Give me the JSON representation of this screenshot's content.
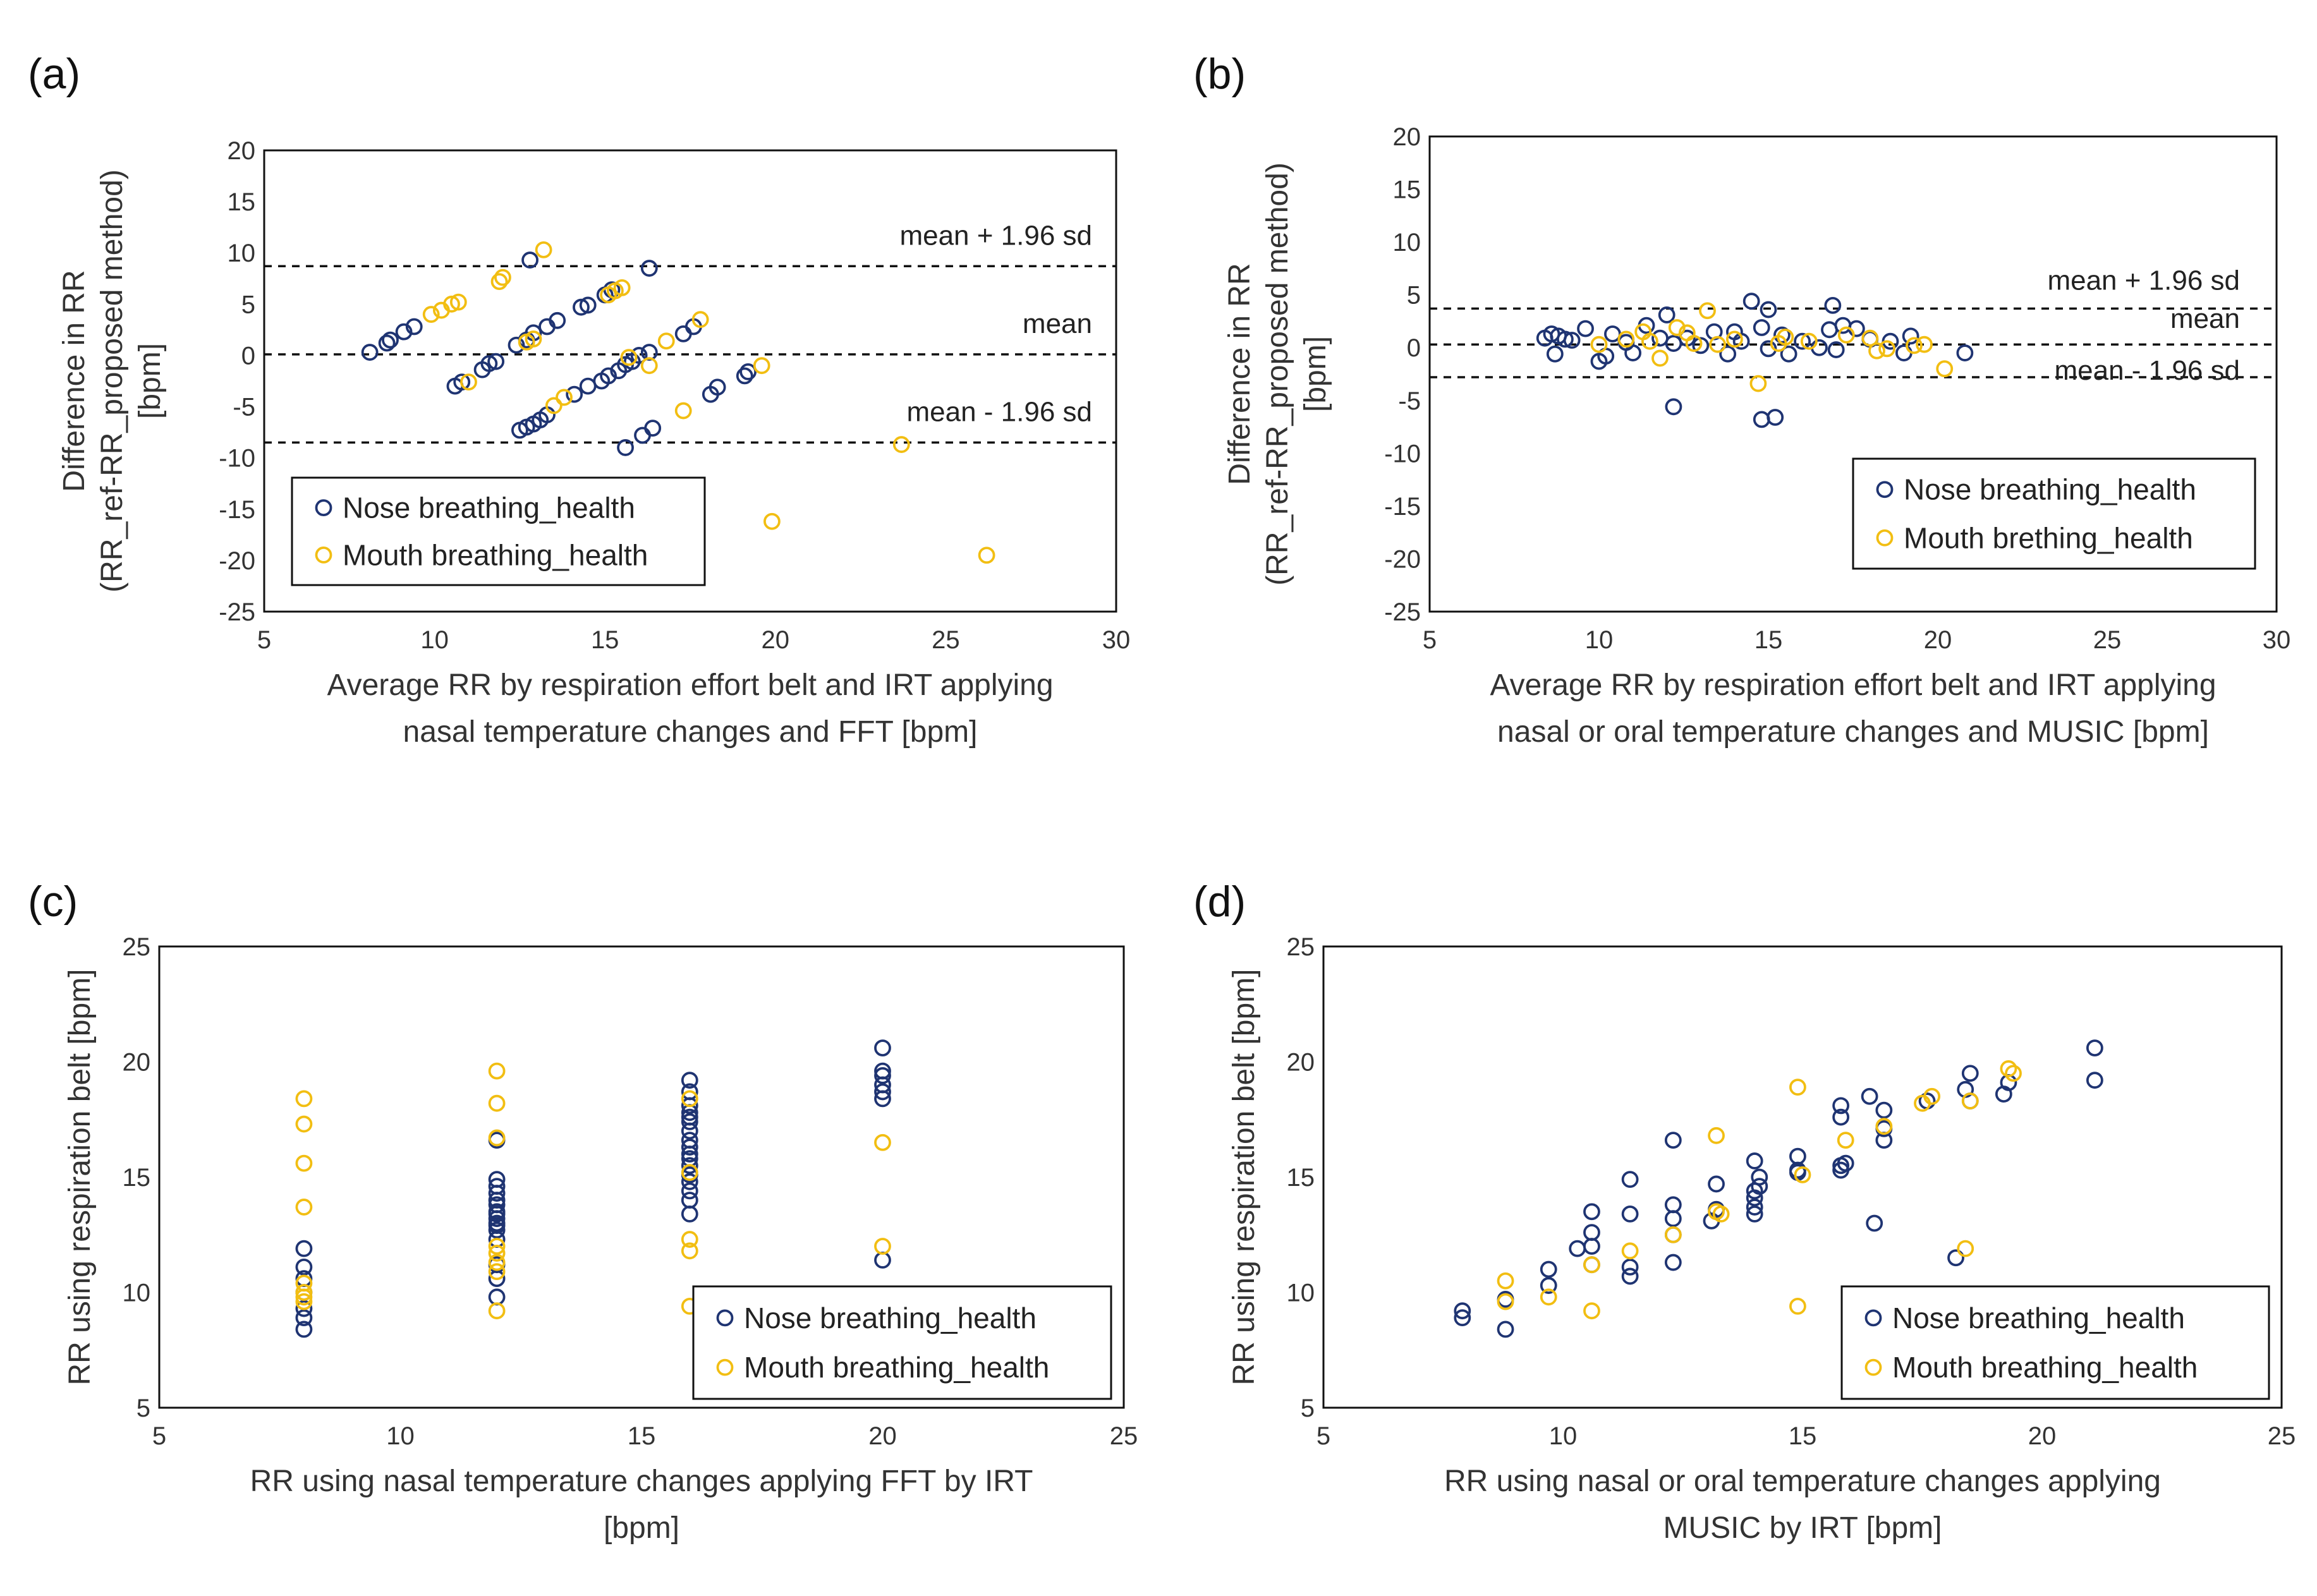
{
  "colors": {
    "nose": "#1f3472",
    "mouth": "#f2be12",
    "line": "#111111"
  },
  "chart_data": [
    {
      "id": "a",
      "panel_label": "(a)",
      "type": "scatter",
      "xlabel_lines": [
        "Average RR by respiration effort belt and IRT applying",
        "nasal temperature changes and FFT [bpm]"
      ],
      "ylabel_lines": [
        "Difference in RR",
        "(RR_ref-RR_proposed method)",
        "[bpm]"
      ],
      "xlim": [
        5,
        30
      ],
      "ylim": [
        -25,
        20
      ],
      "xticks": [
        5,
        10,
        15,
        20,
        25,
        30
      ],
      "yticks": [
        -25,
        -20,
        -15,
        -10,
        -5,
        0,
        5,
        10,
        15,
        20
      ],
      "hlines": [
        {
          "y": 8.7,
          "label": "mean + 1.96 sd"
        },
        {
          "y": 0.1,
          "label": "mean"
        },
        {
          "y": -8.5,
          "label": "mean - 1.96 sd"
        }
      ],
      "legend": {
        "position": "bottom-left",
        "entries": [
          "Nose breathing_health",
          "Mouth breathing_health"
        ]
      },
      "series": [
        {
          "name": "Nose breathing_health",
          "color_key": "nose",
          "x": [
            8.1,
            8.6,
            8.7,
            9.1,
            9.4,
            10.6,
            10.8,
            11.4,
            11.6,
            11.8,
            12.4,
            12.7,
            12.9,
            13.3,
            13.6,
            14.3,
            14.5,
            15.0,
            15.2,
            15.8,
            16.0,
            16.3,
            12.5,
            12.7,
            12.9,
            13.1,
            13.3,
            14.1,
            14.5,
            14.9,
            15.1,
            15.4,
            15.6,
            15.6,
            16.1,
            16.4,
            17.3,
            17.6,
            18.1,
            18.3,
            19.1,
            19.2,
            12.8,
            16.3
          ],
          "y": [
            0.3,
            1.2,
            1.5,
            2.3,
            2.8,
            -3.0,
            -2.6,
            -1.4,
            -0.8,
            -0.6,
            1.0,
            1.5,
            2.2,
            2.8,
            3.4,
            4.7,
            4.9,
            5.9,
            6.4,
            -0.6,
            0.0,
            0.3,
            -7.3,
            -7.0,
            -6.7,
            -6.3,
            -5.8,
            -3.8,
            -3.0,
            -2.5,
            -2.0,
            -1.5,
            -0.9,
            -9.0,
            -7.8,
            -7.1,
            2.1,
            2.8,
            -3.8,
            -3.1,
            -2.0,
            -1.6,
            9.3,
            8.5
          ]
        },
        {
          "name": "Mouth breathing_health",
          "color_key": "mouth",
          "x": [
            9.9,
            10.2,
            10.5,
            10.7,
            11.9,
            12.0,
            12.7,
            12.9,
            13.2,
            13.5,
            13.8,
            15.1,
            15.3,
            15.5,
            16.3,
            16.8,
            17.3,
            17.8,
            19.6,
            19.9,
            23.7,
            26.2,
            11.0,
            15.7
          ],
          "y": [
            4.0,
            4.4,
            5.0,
            5.2,
            7.2,
            7.6,
            1.3,
            1.6,
            10.3,
            -4.9,
            -4.1,
            5.9,
            6.3,
            6.6,
            -1.0,
            1.4,
            -5.4,
            3.5,
            -1.0,
            -16.2,
            -8.7,
            -19.5,
            -2.6,
            -0.2
          ]
        }
      ]
    },
    {
      "id": "b",
      "panel_label": "(b)",
      "type": "scatter",
      "xlabel_lines": [
        "Average RR by respiration effort belt and IRT applying",
        "nasal or oral temperature changes and MUSIC [bpm]"
      ],
      "ylabel_lines": [
        "Difference in RR",
        "(RR_ref-RR_proposed method)",
        "[bpm]"
      ],
      "xlim": [
        5,
        30
      ],
      "ylim": [
        -25,
        20
      ],
      "xticks": [
        5,
        10,
        15,
        20,
        25,
        30
      ],
      "yticks": [
        -25,
        -20,
        -15,
        -10,
        -5,
        0,
        5,
        10,
        15,
        20
      ],
      "hlines": [
        {
          "y": 3.7,
          "label": "mean + 1.96 sd"
        },
        {
          "y": 0.3,
          "label": "mean"
        },
        {
          "y": -2.8,
          "label": "mean - 1.96 sd"
        }
      ],
      "legend": {
        "position": "bottom-right",
        "entries": [
          "Nose breathing_health",
          "Mouth brething_health"
        ]
      },
      "series": [
        {
          "name": "Nose breathing_health",
          "color_key": "nose",
          "x": [
            8.4,
            8.6,
            8.8,
            8.7,
            9.0,
            9.2,
            9.6,
            10.0,
            10.2,
            10.4,
            10.8,
            11.0,
            11.4,
            11.8,
            12.0,
            12.2,
            12.6,
            13.0,
            13.4,
            13.8,
            14.0,
            14.2,
            14.5,
            14.8,
            15.0,
            15.4,
            15.6,
            16.0,
            16.5,
            16.8,
            17.0,
            17.2,
            17.6,
            18.0,
            18.6,
            19.0,
            19.2,
            20.8,
            12.2,
            14.8,
            15.2,
            16.9,
            15.0
          ],
          "y": [
            0.9,
            1.3,
            1.1,
            -0.6,
            0.8,
            0.7,
            1.8,
            -1.3,
            -0.8,
            1.3,
            0.5,
            -0.5,
            2.1,
            0.9,
            3.1,
            0.4,
            0.9,
            0.2,
            1.5,
            -0.6,
            1.5,
            0.6,
            4.4,
            1.9,
            -0.1,
            1.2,
            -0.6,
            0.6,
            0.0,
            1.7,
            -0.2,
            2.1,
            1.8,
            0.8,
            0.6,
            -0.5,
            1.1,
            -0.5,
            -5.6,
            -6.8,
            -6.6,
            4.0,
            3.6
          ]
        },
        {
          "name": "Mouth brething_health",
          "color_key": "mouth",
          "x": [
            10.0,
            10.8,
            11.3,
            11.8,
            12.3,
            12.8,
            13.2,
            13.5,
            14.0,
            14.7,
            15.3,
            16.2,
            17.3,
            18.2,
            18.5,
            19.3,
            19.6,
            20.2,
            11.5,
            12.6,
            15.5,
            18.0
          ],
          "y": [
            0.3,
            0.8,
            1.5,
            -1.0,
            1.9,
            0.4,
            3.5,
            0.3,
            0.8,
            -3.4,
            0.4,
            0.6,
            1.2,
            -0.3,
            -0.1,
            0.2,
            0.3,
            -2.0,
            0.6,
            1.4,
            1.0,
            0.9
          ]
        }
      ]
    },
    {
      "id": "c",
      "panel_label": "(c)",
      "type": "scatter",
      "xlabel_lines": [
        "RR using nasal temperature changes applying FFT by IRT",
        "[bpm]"
      ],
      "ylabel_lines": [
        "RR using respiration belt [bpm]"
      ],
      "xlim": [
        5,
        25
      ],
      "ylim": [
        5,
        25
      ],
      "xticks": [
        5,
        10,
        15,
        20,
        25
      ],
      "yticks": [
        5,
        10,
        15,
        20,
        25
      ],
      "hlines": [],
      "legend": {
        "position": "bottom-right",
        "entries": [
          "Nose breathing_health",
          "Mouth breathing_health"
        ]
      },
      "series": [
        {
          "name": "Nose breathing_health",
          "color_key": "nose",
          "x": [
            8,
            8,
            8,
            8,
            8,
            8,
            8,
            12,
            12,
            12,
            12,
            12,
            12,
            12,
            12,
            12,
            12,
            12,
            12,
            12,
            12,
            12,
            12,
            16,
            16,
            16,
            16,
            16,
            16,
            16,
            16,
            16,
            16,
            16,
            16,
            16,
            16,
            16,
            16,
            16,
            16,
            20,
            20,
            20,
            20,
            20,
            20,
            20
          ],
          "y": [
            8.4,
            8.9,
            9.3,
            10.0,
            10.6,
            11.1,
            11.9,
            9.8,
            10.6,
            11.2,
            12.3,
            12.7,
            13.0,
            13.2,
            13.5,
            13.8,
            14.0,
            14.3,
            14.6,
            14.9,
            16.6,
            12.9,
            13.4,
            13.4,
            14.0,
            14.4,
            14.8,
            15.1,
            15.5,
            15.8,
            16.0,
            16.3,
            16.6,
            17.0,
            17.4,
            17.8,
            18.1,
            18.7,
            19.2,
            15.1,
            17.6,
            11.4,
            18.4,
            18.7,
            19.0,
            19.4,
            19.6,
            20.6
          ]
        },
        {
          "name": "Mouth breathing_health",
          "color_key": "mouth",
          "x": [
            8,
            8,
            8,
            8,
            8,
            8,
            8,
            8,
            12,
            12,
            12,
            12,
            12,
            12,
            12,
            12,
            16,
            16,
            16,
            16,
            16,
            20,
            20
          ],
          "y": [
            9.6,
            10.0,
            10.4,
            13.7,
            15.6,
            17.3,
            18.4,
            9.8,
            9.2,
            10.9,
            11.7,
            12.0,
            16.7,
            18.2,
            19.6,
            11.3,
            9.4,
            11.8,
            12.3,
            15.2,
            18.4,
            12.0,
            16.5
          ]
        }
      ]
    },
    {
      "id": "d",
      "panel_label": "(d)",
      "type": "scatter",
      "xlabel_lines": [
        "RR using nasal or oral temperature changes applying",
        "MUSIC by IRT [bpm]"
      ],
      "ylabel_lines": [
        "RR using respiration belt [bpm]"
      ],
      "xlim": [
        5,
        25
      ],
      "ylim": [
        5,
        25
      ],
      "xticks": [
        5,
        10,
        15,
        20,
        25
      ],
      "yticks": [
        5,
        10,
        15,
        20,
        25
      ],
      "hlines": [],
      "legend": {
        "position": "bottom-right",
        "entries": [
          "Nose breathing_health",
          "Mouth breathing_health"
        ]
      },
      "series": [
        {
          "name": "Nose breathing_health",
          "color_key": "nose",
          "x": [
            7.9,
            7.9,
            8.8,
            8.8,
            9.7,
            9.7,
            10.3,
            10.6,
            10.6,
            10.6,
            10.6,
            11.4,
            11.4,
            11.4,
            11.4,
            12.3,
            12.3,
            12.3,
            12.3,
            13.1,
            13.2,
            13.2,
            14.0,
            14.0,
            14.0,
            14.0,
            14.0,
            14.1,
            14.1,
            14.9,
            14.9,
            14.9,
            15.8,
            15.8,
            15.8,
            15.8,
            15.9,
            16.5,
            16.7,
            16.7,
            16.7,
            17.6,
            18.2,
            18.4,
            18.5,
            18.5,
            19.2,
            19.3,
            21.1,
            21.1,
            12.3,
            16.4
          ],
          "y": [
            8.9,
            9.2,
            8.4,
            9.7,
            10.3,
            11.0,
            11.9,
            11.2,
            12.0,
            12.6,
            13.5,
            10.7,
            11.1,
            13.4,
            14.9,
            11.3,
            12.5,
            13.2,
            13.8,
            13.1,
            13.6,
            14.7,
            13.4,
            13.7,
            14.1,
            14.4,
            15.7,
            14.6,
            15.0,
            15.3,
            15.2,
            15.9,
            15.3,
            15.5,
            17.6,
            18.1,
            15.6,
            13.0,
            16.6,
            17.1,
            17.9,
            18.3,
            11.5,
            18.8,
            18.3,
            19.5,
            18.6,
            19.1,
            19.2,
            20.6,
            16.6,
            18.5
          ]
        },
        {
          "name": "Mouth breathing_health",
          "color_key": "mouth",
          "x": [
            8.8,
            8.8,
            9.7,
            10.6,
            10.6,
            11.4,
            12.3,
            13.2,
            13.2,
            14.9,
            14.9,
            15.9,
            16.7,
            17.5,
            17.7,
            18.4,
            18.5,
            19.3,
            19.4,
            13.3,
            15.0
          ],
          "y": [
            10.5,
            9.6,
            9.8,
            9.2,
            11.2,
            11.8,
            12.5,
            13.5,
            16.8,
            9.4,
            18.9,
            16.6,
            17.2,
            18.2,
            18.5,
            11.9,
            18.3,
            19.7,
            19.5,
            13.4,
            15.1
          ]
        }
      ]
    }
  ]
}
